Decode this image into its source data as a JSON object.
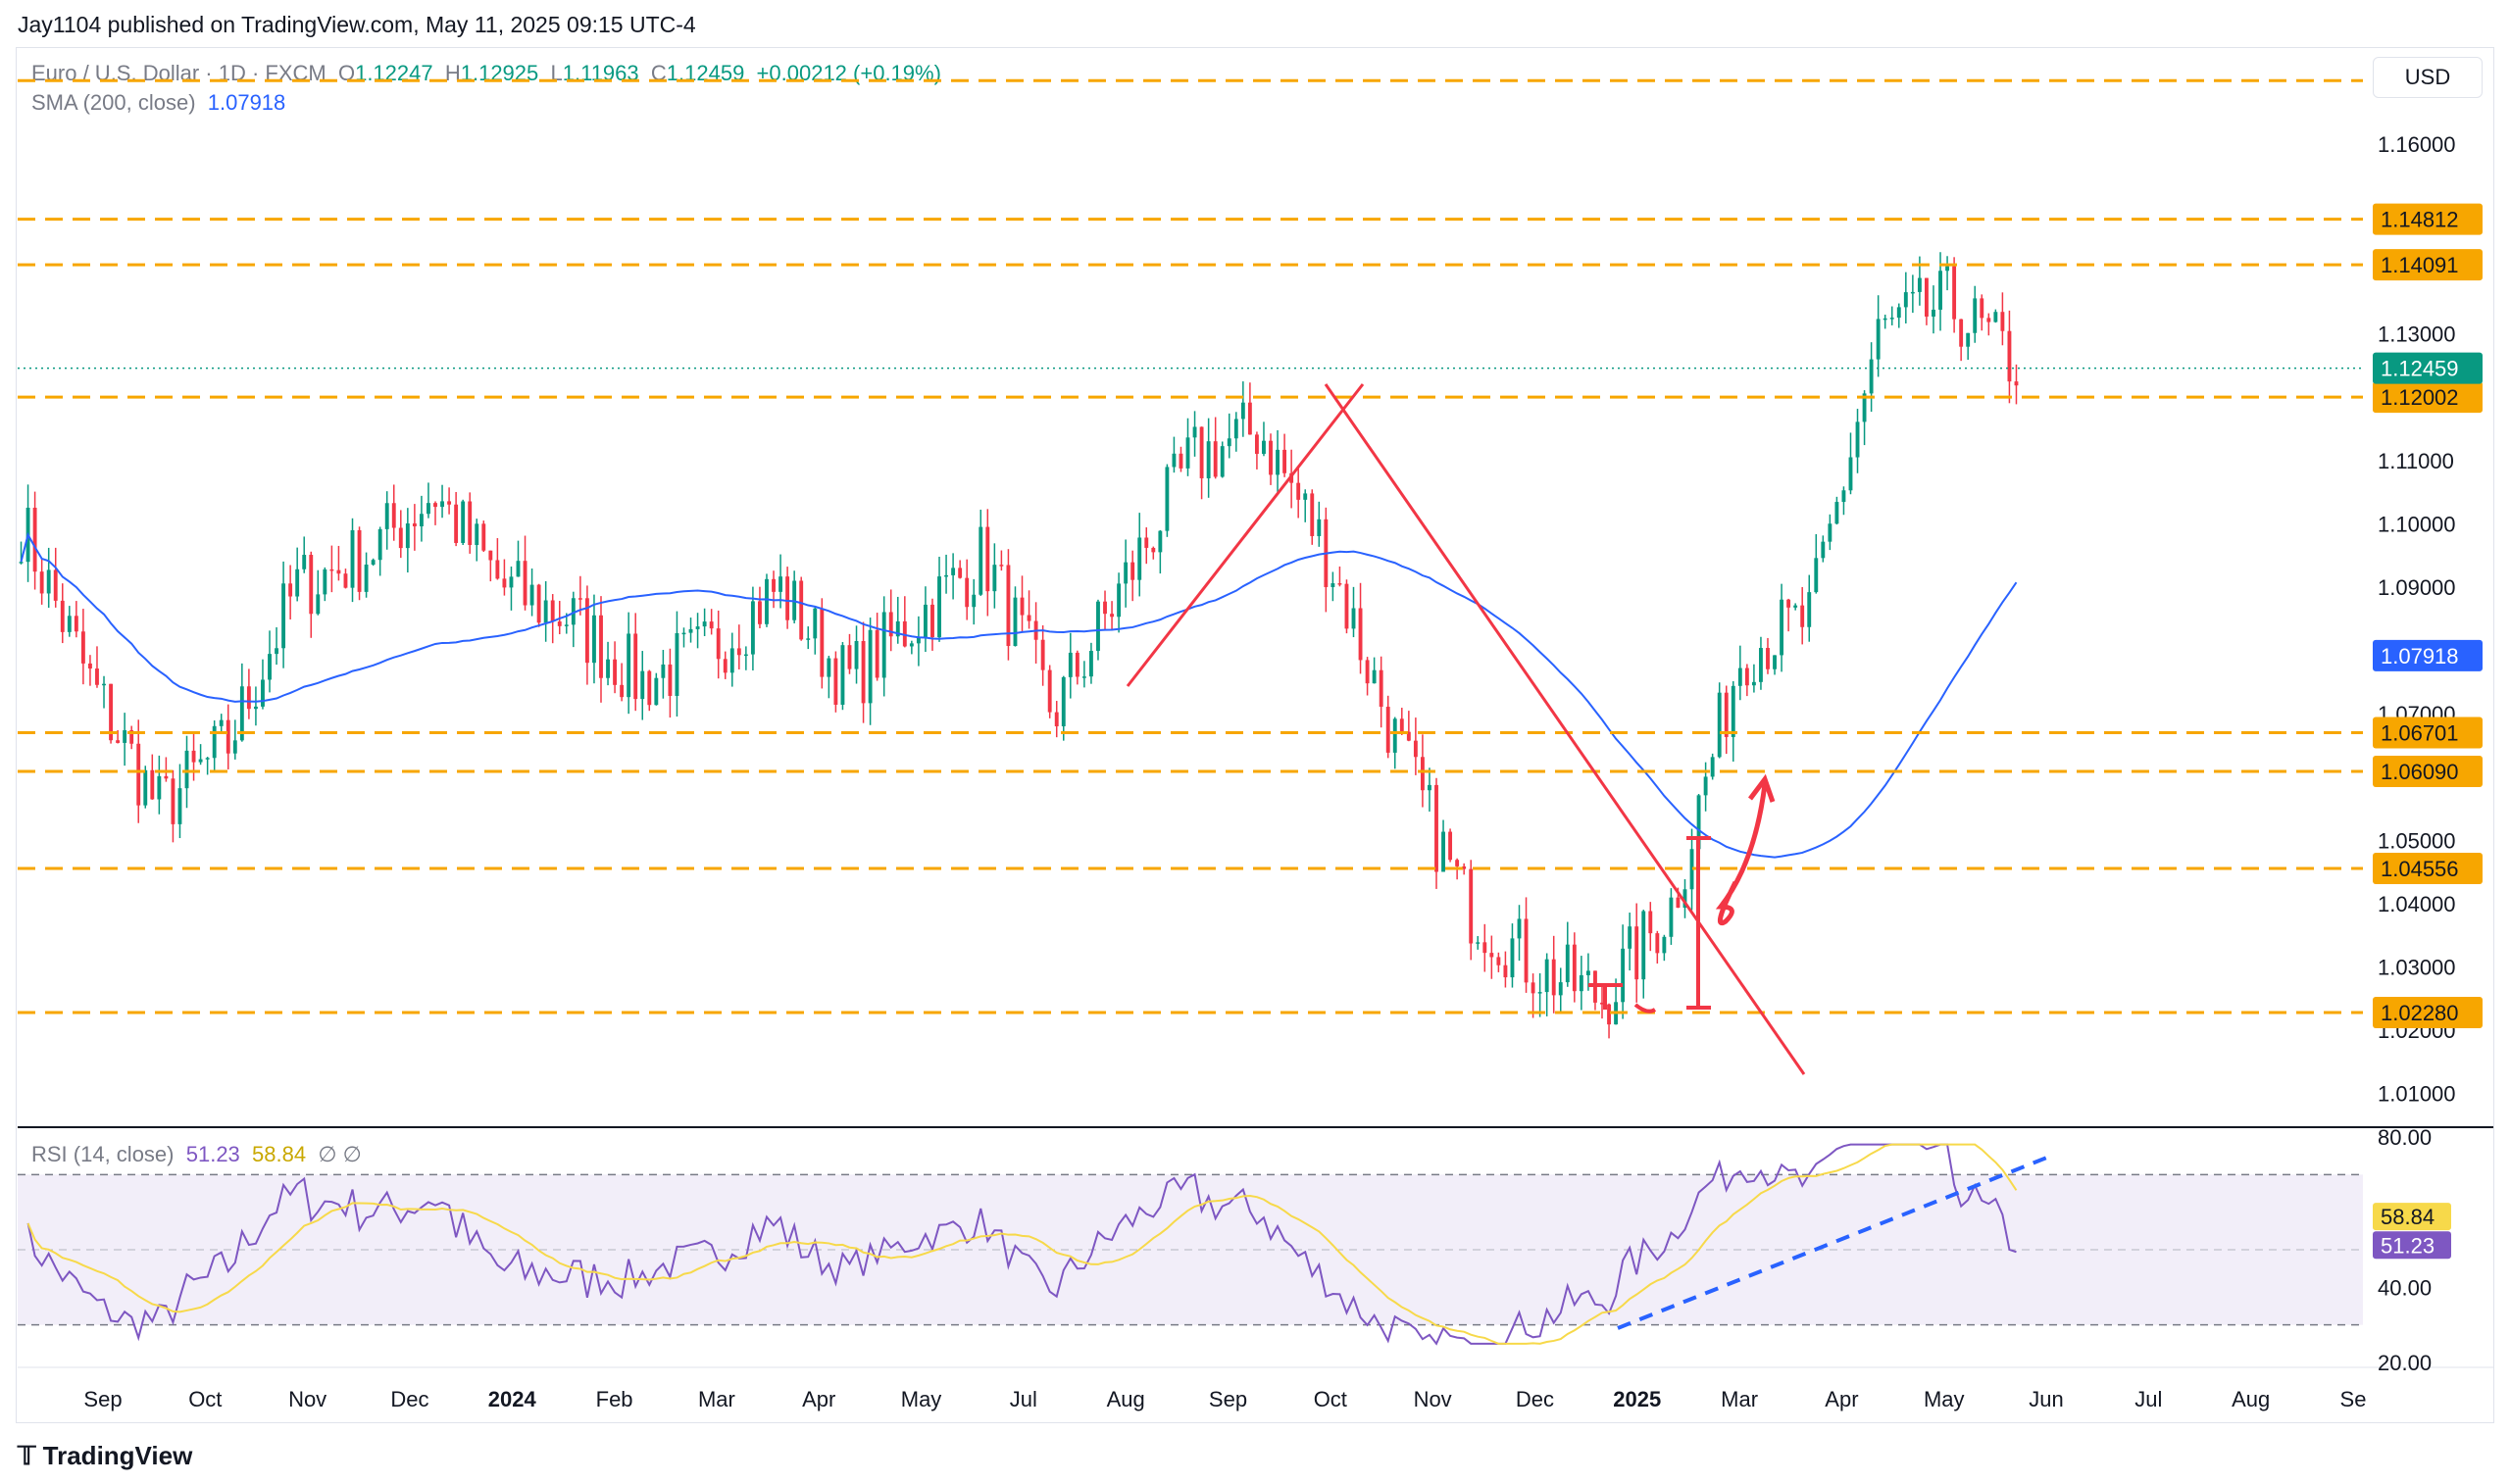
{
  "header": {
    "published": "Jay1104 published on TradingView.com, May 11, 2025 09:15 UTC-4"
  },
  "legend": {
    "symbol": "Euro / U.S. Dollar · 1D · FXCM",
    "open_label": "O",
    "open": "1.12247",
    "high_label": "H",
    "high": "1.12925",
    "low_label": "L",
    "low": "1.11963",
    "close_label": "C",
    "close": "1.12459",
    "change": "+0.00212 (+0.19%)",
    "sma_label": "SMA (200, close)",
    "sma_value": "1.07918",
    "rsi_label": "RSI (14, close)",
    "rsi_value": "51.23",
    "rsi_ma_value": "58.84",
    "rsi_extra": "∅ ∅"
  },
  "currency_button": "USD",
  "footer": {
    "logo_text": "TradingView"
  },
  "colors": {
    "up": "#089981",
    "down": "#f23645",
    "sma": "#2962ff",
    "level": "#f7a600",
    "rsi": "#7e57c2",
    "rsi_ma": "#f7d94a",
    "drawing": "#f23645",
    "trend_blue": "#2962ff"
  },
  "chart_data": [
    {
      "type": "candlestick",
      "price_axis_ticks": [
        "1.16000",
        "1.13000",
        "1.11000",
        "1.10000",
        "1.09000",
        "1.07000",
        "1.05000",
        "1.04000",
        "1.03000",
        "1.02000",
        "1.01000"
      ],
      "time_axis_labels": [
        "Sep",
        "Oct",
        "Nov",
        "Dec",
        "2024",
        "Feb",
        "Mar",
        "Apr",
        "May",
        "Jul",
        "Aug",
        "Sep",
        "Oct",
        "Nov",
        "Dec",
        "2025",
        "Mar",
        "Apr",
        "May",
        "Jun",
        "Jul",
        "Aug",
        "Se"
      ],
      "horizontal_levels": [
        "1.14812",
        "1.14091",
        "1.12002",
        "1.06701",
        "1.06090",
        "1.04556",
        "1.02280"
      ],
      "unlabeled_levels": [
        1.17
      ],
      "last_price": "1.12459",
      "sma_last": "1.07918",
      "ylim": [
        1.005,
        1.175
      ],
      "months_path_close": [
        1.1,
        1.075,
        1.055,
        1.065,
        1.09,
        1.095,
        1.105,
        1.09,
        1.085,
        1.075,
        1.08,
        1.09,
        1.075,
        1.085,
        1.095,
        1.07,
        1.09,
        1.11,
        1.115,
        1.095,
        1.065,
        1.04,
        1.03,
        1.025,
        1.04,
        1.08,
        1.085,
        1.13,
        1.135,
        1.125
      ]
    },
    {
      "type": "line",
      "name": "RSI (14, close)",
      "axis_ticks": [
        "80.00",
        "40.00",
        "20.00"
      ],
      "bands": [
        70,
        30
      ],
      "last_values": [
        "58.84",
        "51.23"
      ],
      "ylim": [
        20,
        80
      ]
    }
  ]
}
